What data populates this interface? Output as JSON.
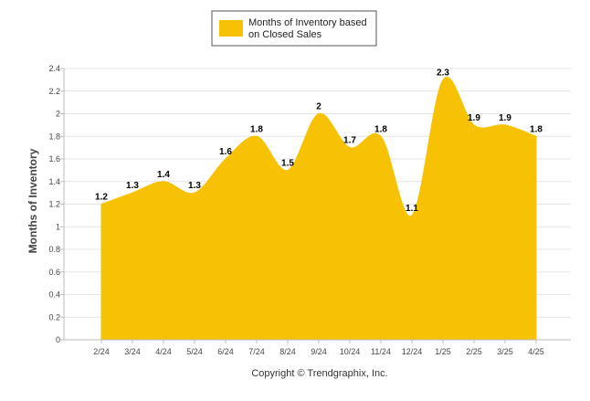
{
  "colors": {
    "area": "#F7C204",
    "grid": "#E4E4E4",
    "axis": "#BBBBBB",
    "text": "#444444"
  },
  "legend": {
    "line1": "Months of Inventory based",
    "line2": "on Closed Sales"
  },
  "footer": {
    "copyright": "Copyright © Trendgraphix, Inc."
  },
  "chart_data": {
    "type": "area",
    "title": "",
    "ylabel": "Months of Inventory",
    "xlabel": "",
    "legend_position": "top-center",
    "grid": true,
    "ylim": [
      0,
      2.4
    ],
    "yticks": [
      0,
      0.2,
      0.4,
      0.6,
      0.8,
      1,
      1.2,
      1.4,
      1.6,
      1.8,
      2,
      2.2,
      2.4
    ],
    "categories": [
      "2/24",
      "3/24",
      "4/24",
      "5/24",
      "6/24",
      "7/24",
      "8/24",
      "9/24",
      "10/24",
      "11/24",
      "12/24",
      "1/25",
      "2/25",
      "3/25",
      "4/25"
    ],
    "series": [
      {
        "name": "Months of Inventory based on Closed Sales",
        "values": [
          1.2,
          1.3,
          1.4,
          1.3,
          1.6,
          1.8,
          1.5,
          2,
          1.7,
          1.8,
          1.1,
          2.3,
          1.9,
          1.9,
          1.8
        ]
      }
    ]
  }
}
